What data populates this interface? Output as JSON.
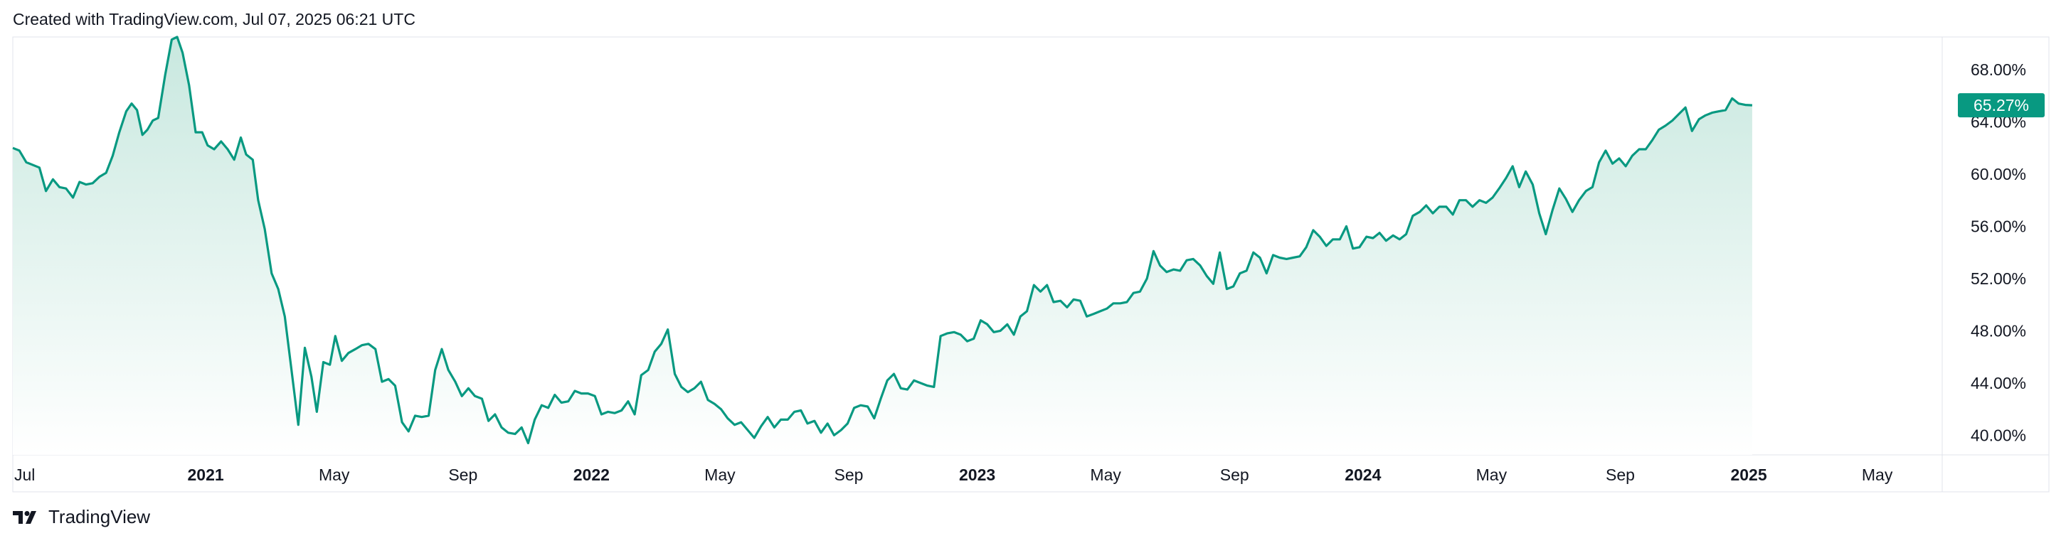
{
  "header": {
    "caption": "Created with TradingView.com, Jul 07, 2025 06:21 UTC"
  },
  "footer": {
    "brand": "TradingView"
  },
  "colors": {
    "line": "#089981",
    "area_top": "#c8e8df",
    "area_bottom": "#ffffff",
    "last_badge": "#089981",
    "axis_text": "#131722",
    "border": "#e0e3eb"
  },
  "chart_data": {
    "type": "area",
    "title": "",
    "xlabel": "",
    "ylabel": "",
    "ylim": [
      38.5,
      70.5
    ],
    "y_ticks": [
      "40.00%",
      "44.00%",
      "48.00%",
      "52.00%",
      "56.00%",
      "60.00%",
      "64.00%",
      "68.00%"
    ],
    "y_tick_values": [
      40,
      44,
      48,
      52,
      56,
      60,
      64,
      68
    ],
    "x_ticks": [
      {
        "label": "Jul",
        "t": 0.0,
        "bold": false
      },
      {
        "label": "2021",
        "t": 0.5,
        "bold": true
      },
      {
        "label": "May",
        "t": 0.833,
        "bold": false
      },
      {
        "label": "Sep",
        "t": 1.167,
        "bold": false
      },
      {
        "label": "2022",
        "t": 1.5,
        "bold": true
      },
      {
        "label": "May",
        "t": 1.833,
        "bold": false
      },
      {
        "label": "Sep",
        "t": 2.167,
        "bold": false
      },
      {
        "label": "2023",
        "t": 2.5,
        "bold": true
      },
      {
        "label": "May",
        "t": 2.833,
        "bold": false
      },
      {
        "label": "Sep",
        "t": 3.167,
        "bold": false
      },
      {
        "label": "2024",
        "t": 3.5,
        "bold": true
      },
      {
        "label": "May",
        "t": 3.833,
        "bold": false
      },
      {
        "label": "Sep",
        "t": 4.167,
        "bold": false
      },
      {
        "label": "2025",
        "t": 4.5,
        "bold": true
      },
      {
        "label": "May",
        "t": 4.833,
        "bold": false
      }
    ],
    "x_range": [
      0,
      5.02
    ],
    "last_value_label": "65.27%",
    "last_value": 65.27,
    "series": [
      {
        "values": [
          [
            0.0,
            62.0
          ],
          [
            0.017,
            61.8
          ],
          [
            0.035,
            60.9
          ],
          [
            0.069,
            60.5
          ],
          [
            0.086,
            58.7
          ],
          [
            0.104,
            59.6
          ],
          [
            0.121,
            59.0
          ],
          [
            0.138,
            58.9
          ],
          [
            0.156,
            58.2
          ],
          [
            0.173,
            59.4
          ],
          [
            0.19,
            59.2
          ],
          [
            0.207,
            59.3
          ],
          [
            0.225,
            59.8
          ],
          [
            0.242,
            60.1
          ],
          [
            0.259,
            61.4
          ],
          [
            0.276,
            63.2
          ],
          [
            0.294,
            64.8
          ],
          [
            0.308,
            65.4
          ],
          [
            0.322,
            64.9
          ],
          [
            0.336,
            63.0
          ],
          [
            0.349,
            63.4
          ],
          [
            0.363,
            64.1
          ],
          [
            0.377,
            64.3
          ],
          [
            0.395,
            67.6
          ],
          [
            0.412,
            70.3
          ],
          [
            0.426,
            70.5
          ],
          [
            0.44,
            69.3
          ],
          [
            0.457,
            66.8
          ],
          [
            0.474,
            63.2
          ],
          [
            0.491,
            63.2
          ],
          [
            0.505,
            62.2
          ],
          [
            0.522,
            61.9
          ],
          [
            0.54,
            62.5
          ],
          [
            0.557,
            61.9
          ],
          [
            0.574,
            61.1
          ],
          [
            0.591,
            62.8
          ],
          [
            0.605,
            61.5
          ],
          [
            0.622,
            61.1
          ],
          [
            0.636,
            58.0
          ],
          [
            0.653,
            55.8
          ],
          [
            0.671,
            52.4
          ],
          [
            0.688,
            51.2
          ],
          [
            0.705,
            49.1
          ],
          [
            0.722,
            45.1
          ],
          [
            0.74,
            40.8
          ],
          [
            0.757,
            46.7
          ],
          [
            0.774,
            44.5
          ],
          [
            0.788,
            41.8
          ],
          [
            0.805,
            45.6
          ],
          [
            0.822,
            45.4
          ],
          [
            0.836,
            47.6
          ],
          [
            0.853,
            45.7
          ],
          [
            0.87,
            46.3
          ],
          [
            0.888,
            46.6
          ],
          [
            0.905,
            46.9
          ],
          [
            0.922,
            47.0
          ],
          [
            0.94,
            46.6
          ],
          [
            0.957,
            44.1
          ],
          [
            0.974,
            44.3
          ],
          [
            0.991,
            43.8
          ],
          [
            1.009,
            41.0
          ],
          [
            1.026,
            40.3
          ],
          [
            1.043,
            41.5
          ],
          [
            1.06,
            41.4
          ],
          [
            1.078,
            41.5
          ],
          [
            1.095,
            45.0
          ],
          [
            1.112,
            46.6
          ],
          [
            1.129,
            45.0
          ],
          [
            1.147,
            44.1
          ],
          [
            1.164,
            43.0
          ],
          [
            1.181,
            43.6
          ],
          [
            1.198,
            43.0
          ],
          [
            1.216,
            42.8
          ],
          [
            1.233,
            41.1
          ],
          [
            1.25,
            41.6
          ],
          [
            1.267,
            40.6
          ],
          [
            1.284,
            40.2
          ],
          [
            1.302,
            40.1
          ],
          [
            1.319,
            40.6
          ],
          [
            1.336,
            39.4
          ],
          [
            1.353,
            41.2
          ],
          [
            1.371,
            42.3
          ],
          [
            1.388,
            42.1
          ],
          [
            1.405,
            43.1
          ],
          [
            1.422,
            42.5
          ],
          [
            1.44,
            42.6
          ],
          [
            1.457,
            43.4
          ],
          [
            1.474,
            43.2
          ],
          [
            1.491,
            43.2
          ],
          [
            1.509,
            43.0
          ],
          [
            1.526,
            41.6
          ],
          [
            1.543,
            41.8
          ],
          [
            1.56,
            41.7
          ],
          [
            1.578,
            41.9
          ],
          [
            1.595,
            42.6
          ],
          [
            1.612,
            41.6
          ],
          [
            1.629,
            44.6
          ],
          [
            1.647,
            45.0
          ],
          [
            1.664,
            46.4
          ],
          [
            1.681,
            47.0
          ],
          [
            1.698,
            48.1
          ],
          [
            1.716,
            44.7
          ],
          [
            1.733,
            43.7
          ],
          [
            1.75,
            43.3
          ],
          [
            1.767,
            43.6
          ],
          [
            1.784,
            44.1
          ],
          [
            1.802,
            42.7
          ],
          [
            1.819,
            42.4
          ],
          [
            1.836,
            42.0
          ],
          [
            1.853,
            41.3
          ],
          [
            1.871,
            40.8
          ],
          [
            1.888,
            41.0
          ],
          [
            1.905,
            40.4
          ],
          [
            1.922,
            39.8
          ],
          [
            1.94,
            40.7
          ],
          [
            1.957,
            41.4
          ],
          [
            1.974,
            40.6
          ],
          [
            1.991,
            41.2
          ],
          [
            2.009,
            41.2
          ],
          [
            2.026,
            41.8
          ],
          [
            2.043,
            41.9
          ],
          [
            2.06,
            40.9
          ],
          [
            2.078,
            41.1
          ],
          [
            2.095,
            40.2
          ],
          [
            2.112,
            40.9
          ],
          [
            2.129,
            40.0
          ],
          [
            2.147,
            40.4
          ],
          [
            2.164,
            40.9
          ],
          [
            2.181,
            42.1
          ],
          [
            2.198,
            42.3
          ],
          [
            2.216,
            42.2
          ],
          [
            2.233,
            41.3
          ],
          [
            2.25,
            42.8
          ],
          [
            2.267,
            44.2
          ],
          [
            2.284,
            44.7
          ],
          [
            2.302,
            43.6
          ],
          [
            2.319,
            43.5
          ],
          [
            2.336,
            44.2
          ],
          [
            2.353,
            44.0
          ],
          [
            2.371,
            43.8
          ],
          [
            2.388,
            43.7
          ],
          [
            2.405,
            47.6
          ],
          [
            2.422,
            47.8
          ],
          [
            2.44,
            47.9
          ],
          [
            2.457,
            47.7
          ],
          [
            2.474,
            47.2
          ],
          [
            2.491,
            47.4
          ],
          [
            2.509,
            48.8
          ],
          [
            2.526,
            48.5
          ],
          [
            2.543,
            47.9
          ],
          [
            2.56,
            48.0
          ],
          [
            2.578,
            48.5
          ],
          [
            2.595,
            47.7
          ],
          [
            2.612,
            49.1
          ],
          [
            2.629,
            49.5
          ],
          [
            2.647,
            51.5
          ],
          [
            2.664,
            51.0
          ],
          [
            2.681,
            51.5
          ],
          [
            2.698,
            50.2
          ],
          [
            2.716,
            50.3
          ],
          [
            2.733,
            49.8
          ],
          [
            2.75,
            50.4
          ],
          [
            2.767,
            50.3
          ],
          [
            2.784,
            49.1
          ],
          [
            2.802,
            49.3
          ],
          [
            2.819,
            49.5
          ],
          [
            2.836,
            49.7
          ],
          [
            2.853,
            50.1
          ],
          [
            2.871,
            50.1
          ],
          [
            2.888,
            50.2
          ],
          [
            2.905,
            50.9
          ],
          [
            2.922,
            51.0
          ],
          [
            2.94,
            52.0
          ],
          [
            2.957,
            54.1
          ],
          [
            2.974,
            53.0
          ],
          [
            2.991,
            52.5
          ],
          [
            3.009,
            52.7
          ],
          [
            3.026,
            52.6
          ],
          [
            3.043,
            53.4
          ],
          [
            3.06,
            53.5
          ],
          [
            3.078,
            53.0
          ],
          [
            3.095,
            52.2
          ],
          [
            3.112,
            51.6
          ],
          [
            3.129,
            54.0
          ],
          [
            3.147,
            51.2
          ],
          [
            3.164,
            51.4
          ],
          [
            3.181,
            52.4
          ],
          [
            3.198,
            52.6
          ],
          [
            3.216,
            54.0
          ],
          [
            3.233,
            53.6
          ],
          [
            3.25,
            52.4
          ],
          [
            3.267,
            53.8
          ],
          [
            3.284,
            53.6
          ],
          [
            3.302,
            53.5
          ],
          [
            3.319,
            53.6
          ],
          [
            3.336,
            53.7
          ],
          [
            3.353,
            54.4
          ],
          [
            3.371,
            55.7
          ],
          [
            3.388,
            55.2
          ],
          [
            3.405,
            54.5
          ],
          [
            3.422,
            55.0
          ],
          [
            3.44,
            55.0
          ],
          [
            3.457,
            56.0
          ],
          [
            3.474,
            54.3
          ],
          [
            3.491,
            54.4
          ],
          [
            3.509,
            55.2
          ],
          [
            3.526,
            55.1
          ],
          [
            3.543,
            55.5
          ],
          [
            3.56,
            54.9
          ],
          [
            3.578,
            55.3
          ],
          [
            3.595,
            55.0
          ],
          [
            3.612,
            55.4
          ],
          [
            3.629,
            56.8
          ],
          [
            3.647,
            57.1
          ],
          [
            3.664,
            57.6
          ],
          [
            3.681,
            57.0
          ],
          [
            3.698,
            57.5
          ],
          [
            3.716,
            57.5
          ],
          [
            3.733,
            56.9
          ],
          [
            3.75,
            58.0
          ],
          [
            3.767,
            58.0
          ],
          [
            3.784,
            57.5
          ],
          [
            3.802,
            58.0
          ],
          [
            3.819,
            57.8
          ],
          [
            3.836,
            58.2
          ],
          [
            3.853,
            58.9
          ],
          [
            3.871,
            59.7
          ],
          [
            3.888,
            60.6
          ],
          [
            3.905,
            59.0
          ],
          [
            3.922,
            60.2
          ],
          [
            3.94,
            59.2
          ],
          [
            3.957,
            57.0
          ],
          [
            3.974,
            55.4
          ],
          [
            3.991,
            57.2
          ],
          [
            4.009,
            58.9
          ],
          [
            4.026,
            58.1
          ],
          [
            4.043,
            57.1
          ],
          [
            4.06,
            58.0
          ],
          [
            4.078,
            58.7
          ],
          [
            4.095,
            59.0
          ],
          [
            4.112,
            60.9
          ],
          [
            4.129,
            61.8
          ],
          [
            4.147,
            60.8
          ],
          [
            4.164,
            61.2
          ],
          [
            4.181,
            60.6
          ],
          [
            4.198,
            61.4
          ],
          [
            4.216,
            61.9
          ],
          [
            4.233,
            61.9
          ],
          [
            4.25,
            62.6
          ],
          [
            4.267,
            63.4
          ],
          [
            4.284,
            63.7
          ],
          [
            4.302,
            64.1
          ],
          [
            4.319,
            64.6
          ],
          [
            4.336,
            65.1
          ],
          [
            4.353,
            63.3
          ],
          [
            4.371,
            64.2
          ],
          [
            4.388,
            64.5
          ],
          [
            4.405,
            64.7
          ],
          [
            4.422,
            64.8
          ],
          [
            4.44,
            64.9
          ],
          [
            4.457,
            65.8
          ],
          [
            4.474,
            65.4
          ],
          [
            4.491,
            65.3
          ],
          [
            4.509,
            65.27
          ]
        ]
      }
    ]
  }
}
